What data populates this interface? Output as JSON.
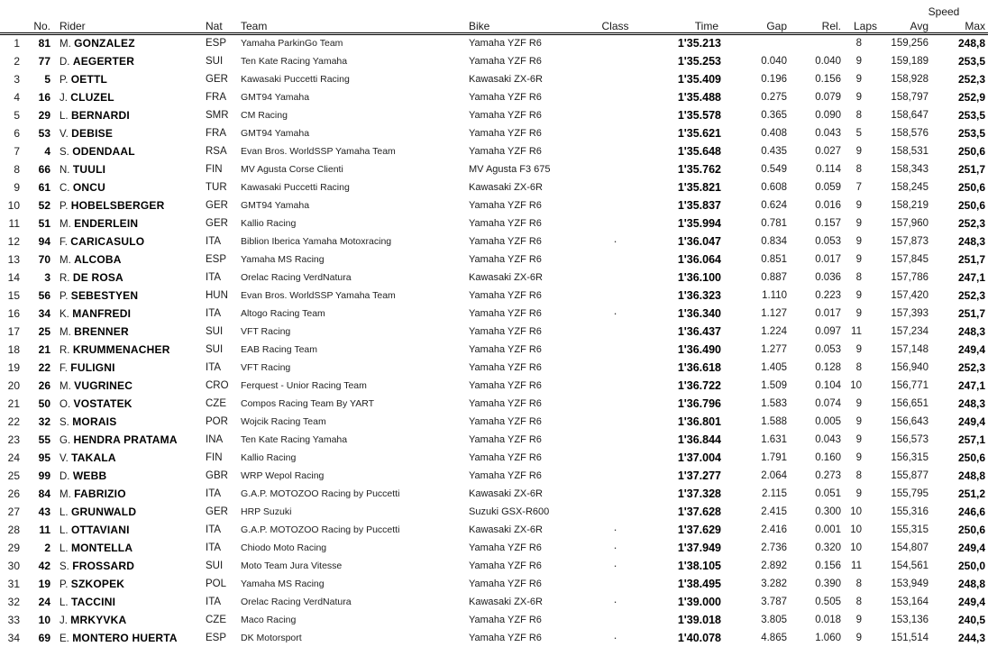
{
  "header": {
    "speed_group_label": "Speed",
    "columns": {
      "no": "No.",
      "rider": "Rider",
      "nat": "Nat",
      "team": "Team",
      "bike": "Bike",
      "class": "Class",
      "time": "Time",
      "gap": "Gap",
      "rel": "Rel.",
      "laps": "Laps",
      "avg": "Avg",
      "max": "Max"
    }
  },
  "class_dot_glyph": "·",
  "rows": [
    {
      "pos": "1",
      "no": "81",
      "initial": "M.",
      "surname": "GONZALEZ",
      "nat": "ESP",
      "team": "Yamaha ParkinGo Team",
      "bike": "Yamaha YZF R6",
      "class_dot": false,
      "time": "1'35.213",
      "gap": "",
      "rel": "",
      "laps": "8",
      "avg": "159,256",
      "max": "248,8"
    },
    {
      "pos": "2",
      "no": "77",
      "initial": "D.",
      "surname": "AEGERTER",
      "nat": "SUI",
      "team": "Ten Kate Racing Yamaha",
      "bike": "Yamaha YZF R6",
      "class_dot": false,
      "time": "1'35.253",
      "gap": "0.040",
      "rel": "0.040",
      "laps": "9",
      "avg": "159,189",
      "max": "253,5"
    },
    {
      "pos": "3",
      "no": "5",
      "initial": "P.",
      "surname": "OETTL",
      "nat": "GER",
      "team": "Kawasaki Puccetti Racing",
      "bike": "Kawasaki ZX-6R",
      "class_dot": false,
      "time": "1'35.409",
      "gap": "0.196",
      "rel": "0.156",
      "laps": "9",
      "avg": "158,928",
      "max": "252,3"
    },
    {
      "pos": "4",
      "no": "16",
      "initial": "J.",
      "surname": "CLUZEL",
      "nat": "FRA",
      "team": "GMT94 Yamaha",
      "bike": "Yamaha YZF R6",
      "class_dot": false,
      "time": "1'35.488",
      "gap": "0.275",
      "rel": "0.079",
      "laps": "9",
      "avg": "158,797",
      "max": "252,9"
    },
    {
      "pos": "5",
      "no": "29",
      "initial": "L.",
      "surname": "BERNARDI",
      "nat": "SMR",
      "team": "CM Racing",
      "bike": "Yamaha YZF R6",
      "class_dot": false,
      "time": "1'35.578",
      "gap": "0.365",
      "rel": "0.090",
      "laps": "8",
      "avg": "158,647",
      "max": "253,5"
    },
    {
      "pos": "6",
      "no": "53",
      "initial": "V.",
      "surname": "DEBISE",
      "nat": "FRA",
      "team": "GMT94 Yamaha",
      "bike": "Yamaha YZF R6",
      "class_dot": false,
      "time": "1'35.621",
      "gap": "0.408",
      "rel": "0.043",
      "laps": "5",
      "avg": "158,576",
      "max": "253,5"
    },
    {
      "pos": "7",
      "no": "4",
      "initial": "S.",
      "surname": "ODENDAAL",
      "nat": "RSA",
      "team": "Evan Bros. WorldSSP Yamaha Team",
      "bike": "Yamaha YZF R6",
      "class_dot": false,
      "time": "1'35.648",
      "gap": "0.435",
      "rel": "0.027",
      "laps": "9",
      "avg": "158,531",
      "max": "250,6"
    },
    {
      "pos": "8",
      "no": "66",
      "initial": "N.",
      "surname": "TUULI",
      "nat": "FIN",
      "team": "MV Agusta Corse Clienti",
      "bike": "MV Agusta F3 675",
      "class_dot": false,
      "time": "1'35.762",
      "gap": "0.549",
      "rel": "0.114",
      "laps": "8",
      "avg": "158,343",
      "max": "251,7"
    },
    {
      "pos": "9",
      "no": "61",
      "initial": "C.",
      "surname": "ONCU",
      "nat": "TUR",
      "team": "Kawasaki Puccetti Racing",
      "bike": "Kawasaki ZX-6R",
      "class_dot": false,
      "time": "1'35.821",
      "gap": "0.608",
      "rel": "0.059",
      "laps": "7",
      "avg": "158,245",
      "max": "250,6"
    },
    {
      "pos": "10",
      "no": "52",
      "initial": "P.",
      "surname": "HOBELSBERGER",
      "nat": "GER",
      "team": "GMT94 Yamaha",
      "bike": "Yamaha YZF R6",
      "class_dot": false,
      "time": "1'35.837",
      "gap": "0.624",
      "rel": "0.016",
      "laps": "9",
      "avg": "158,219",
      "max": "250,6"
    },
    {
      "pos": "11",
      "no": "51",
      "initial": "M.",
      "surname": "ENDERLEIN",
      "nat": "GER",
      "team": "Kallio Racing",
      "bike": "Yamaha YZF R6",
      "class_dot": false,
      "time": "1'35.994",
      "gap": "0.781",
      "rel": "0.157",
      "laps": "9",
      "avg": "157,960",
      "max": "252,3"
    },
    {
      "pos": "12",
      "no": "94",
      "initial": "F.",
      "surname": "CARICASULO",
      "nat": "ITA",
      "team": "Biblion Iberica Yamaha Motoxracing",
      "bike": "Yamaha YZF R6",
      "class_dot": true,
      "time": "1'36.047",
      "gap": "0.834",
      "rel": "0.053",
      "laps": "9",
      "avg": "157,873",
      "max": "248,3"
    },
    {
      "pos": "13",
      "no": "70",
      "initial": "M.",
      "surname": "ALCOBA",
      "nat": "ESP",
      "team": "Yamaha MS Racing",
      "bike": "Yamaha YZF R6",
      "class_dot": false,
      "time": "1'36.064",
      "gap": "0.851",
      "rel": "0.017",
      "laps": "9",
      "avg": "157,845",
      "max": "251,7"
    },
    {
      "pos": "14",
      "no": "3",
      "initial": "R.",
      "surname": "DE ROSA",
      "nat": "ITA",
      "team": "Orelac Racing VerdNatura",
      "bike": "Kawasaki ZX-6R",
      "class_dot": false,
      "time": "1'36.100",
      "gap": "0.887",
      "rel": "0.036",
      "laps": "8",
      "avg": "157,786",
      "max": "247,1"
    },
    {
      "pos": "15",
      "no": "56",
      "initial": "P.",
      "surname": "SEBESTYEN",
      "nat": "HUN",
      "team": "Evan Bros. WorldSSP Yamaha Team",
      "bike": "Yamaha YZF R6",
      "class_dot": false,
      "time": "1'36.323",
      "gap": "1.110",
      "rel": "0.223",
      "laps": "9",
      "avg": "157,420",
      "max": "252,3"
    },
    {
      "pos": "16",
      "no": "34",
      "initial": "K.",
      "surname": "MANFREDI",
      "nat": "ITA",
      "team": "Altogo Racing Team",
      "bike": "Yamaha YZF R6",
      "class_dot": true,
      "time": "1'36.340",
      "gap": "1.127",
      "rel": "0.017",
      "laps": "9",
      "avg": "157,393",
      "max": "251,7"
    },
    {
      "pos": "17",
      "no": "25",
      "initial": "M.",
      "surname": "BRENNER",
      "nat": "SUI",
      "team": "VFT Racing",
      "bike": "Yamaha YZF R6",
      "class_dot": false,
      "time": "1'36.437",
      "gap": "1.224",
      "rel": "0.097",
      "laps": "11",
      "avg": "157,234",
      "max": "248,3"
    },
    {
      "pos": "18",
      "no": "21",
      "initial": "R.",
      "surname": "KRUMMENACHER",
      "nat": "SUI",
      "team": "EAB Racing Team",
      "bike": "Yamaha YZF R6",
      "class_dot": false,
      "time": "1'36.490",
      "gap": "1.277",
      "rel": "0.053",
      "laps": "9",
      "avg": "157,148",
      "max": "249,4"
    },
    {
      "pos": "19",
      "no": "22",
      "initial": "F.",
      "surname": "FULIGNI",
      "nat": "ITA",
      "team": "VFT Racing",
      "bike": "Yamaha YZF R6",
      "class_dot": false,
      "time": "1'36.618",
      "gap": "1.405",
      "rel": "0.128",
      "laps": "8",
      "avg": "156,940",
      "max": "252,3"
    },
    {
      "pos": "20",
      "no": "26",
      "initial": "M.",
      "surname": "VUGRINEC",
      "nat": "CRO",
      "team": "Ferquest - Unior Racing Team",
      "bike": "Yamaha YZF R6",
      "class_dot": false,
      "time": "1'36.722",
      "gap": "1.509",
      "rel": "0.104",
      "laps": "10",
      "avg": "156,771",
      "max": "247,1"
    },
    {
      "pos": "21",
      "no": "50",
      "initial": "O.",
      "surname": "VOSTATEK",
      "nat": "CZE",
      "team": "Compos Racing Team By YART",
      "bike": "Yamaha YZF R6",
      "class_dot": false,
      "time": "1'36.796",
      "gap": "1.583",
      "rel": "0.074",
      "laps": "9",
      "avg": "156,651",
      "max": "248,3"
    },
    {
      "pos": "22",
      "no": "32",
      "initial": "S.",
      "surname": "MORAIS",
      "nat": "POR",
      "team": "Wojcik Racing Team",
      "bike": "Yamaha YZF R6",
      "class_dot": false,
      "time": "1'36.801",
      "gap": "1.588",
      "rel": "0.005",
      "laps": "9",
      "avg": "156,643",
      "max": "249,4"
    },
    {
      "pos": "23",
      "no": "55",
      "initial": "G.",
      "surname": "HENDRA PRATAMA",
      "nat": "INA",
      "team": "Ten Kate Racing Yamaha",
      "bike": "Yamaha YZF R6",
      "class_dot": false,
      "time": "1'36.844",
      "gap": "1.631",
      "rel": "0.043",
      "laps": "9",
      "avg": "156,573",
      "max": "257,1"
    },
    {
      "pos": "24",
      "no": "95",
      "initial": "V.",
      "surname": "TAKALA",
      "nat": "FIN",
      "team": "Kallio Racing",
      "bike": "Yamaha YZF R6",
      "class_dot": false,
      "time": "1'37.004",
      "gap": "1.791",
      "rel": "0.160",
      "laps": "9",
      "avg": "156,315",
      "max": "250,6"
    },
    {
      "pos": "25",
      "no": "99",
      "initial": "D.",
      "surname": "WEBB",
      "nat": "GBR",
      "team": "WRP Wepol Racing",
      "bike": "Yamaha YZF R6",
      "class_dot": false,
      "time": "1'37.277",
      "gap": "2.064",
      "rel": "0.273",
      "laps": "8",
      "avg": "155,877",
      "max": "248,8"
    },
    {
      "pos": "26",
      "no": "84",
      "initial": "M.",
      "surname": "FABRIZIO",
      "nat": "ITA",
      "team": "G.A.P. MOTOZOO Racing by Puccetti",
      "bike": "Kawasaki ZX-6R",
      "class_dot": false,
      "time": "1'37.328",
      "gap": "2.115",
      "rel": "0.051",
      "laps": "9",
      "avg": "155,795",
      "max": "251,2"
    },
    {
      "pos": "27",
      "no": "43",
      "initial": "L.",
      "surname": "GRUNWALD",
      "nat": "GER",
      "team": "HRP Suzuki",
      "bike": "Suzuki GSX-R600",
      "class_dot": false,
      "time": "1'37.628",
      "gap": "2.415",
      "rel": "0.300",
      "laps": "10",
      "avg": "155,316",
      "max": "246,6"
    },
    {
      "pos": "28",
      "no": "11",
      "initial": "L.",
      "surname": "OTTAVIANI",
      "nat": "ITA",
      "team": "G.A.P. MOTOZOO Racing by Puccetti",
      "bike": "Kawasaki ZX-6R",
      "class_dot": true,
      "time": "1'37.629",
      "gap": "2.416",
      "rel": "0.001",
      "laps": "10",
      "avg": "155,315",
      "max": "250,6"
    },
    {
      "pos": "29",
      "no": "2",
      "initial": "L.",
      "surname": "MONTELLA",
      "nat": "ITA",
      "team": "Chiodo Moto Racing",
      "bike": "Yamaha YZF R6",
      "class_dot": true,
      "time": "1'37.949",
      "gap": "2.736",
      "rel": "0.320",
      "laps": "10",
      "avg": "154,807",
      "max": "249,4"
    },
    {
      "pos": "30",
      "no": "42",
      "initial": "S.",
      "surname": "FROSSARD",
      "nat": "SUI",
      "team": "Moto Team Jura Vitesse",
      "bike": "Yamaha YZF R6",
      "class_dot": true,
      "time": "1'38.105",
      "gap": "2.892",
      "rel": "0.156",
      "laps": "11",
      "avg": "154,561",
      "max": "250,0"
    },
    {
      "pos": "31",
      "no": "19",
      "initial": "P.",
      "surname": "SZKOPEK",
      "nat": "POL",
      "team": "Yamaha MS Racing",
      "bike": "Yamaha YZF R6",
      "class_dot": false,
      "time": "1'38.495",
      "gap": "3.282",
      "rel": "0.390",
      "laps": "8",
      "avg": "153,949",
      "max": "248,8"
    },
    {
      "pos": "32",
      "no": "24",
      "initial": "L.",
      "surname": "TACCINI",
      "nat": "ITA",
      "team": "Orelac Racing VerdNatura",
      "bike": "Kawasaki ZX-6R",
      "class_dot": true,
      "time": "1'39.000",
      "gap": "3.787",
      "rel": "0.505",
      "laps": "8",
      "avg": "153,164",
      "max": "249,4"
    },
    {
      "pos": "33",
      "no": "10",
      "initial": "J.",
      "surname": "MRKYVKA",
      "nat": "CZE",
      "team": "Maco Racing",
      "bike": "Yamaha YZF R6",
      "class_dot": false,
      "time": "1'39.018",
      "gap": "3.805",
      "rel": "0.018",
      "laps": "9",
      "avg": "153,136",
      "max": "240,5"
    },
    {
      "pos": "34",
      "no": "69",
      "initial": "E.",
      "surname": "MONTERO HUERTA",
      "nat": "ESP",
      "team": "DK Motorsport",
      "bike": "Yamaha YZF R6",
      "class_dot": true,
      "time": "1'40.078",
      "gap": "4.865",
      "rel": "1.060",
      "laps": "9",
      "avg": "151,514",
      "max": "244,3"
    }
  ]
}
